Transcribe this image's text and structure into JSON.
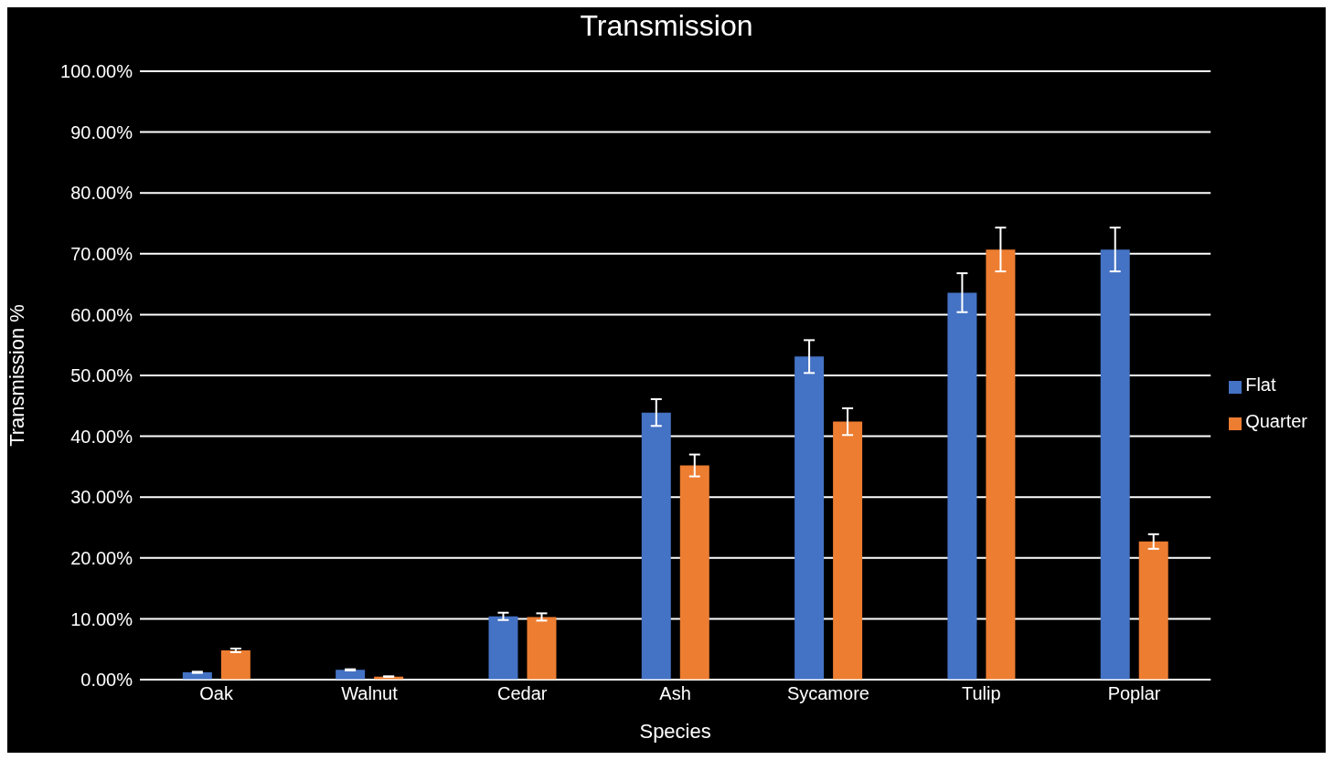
{
  "chart_data": {
    "type": "bar",
    "title": "Transmission",
    "xlabel": "Species",
    "ylabel": "Transmission %",
    "categories": [
      "Oak",
      "Walnut",
      "Cedar",
      "Ash",
      "Sycamore",
      "Tulip",
      "Poplar"
    ],
    "series": [
      {
        "name": "Flat",
        "color": "#4472c4",
        "values": [
          1.2,
          1.6,
          10.4,
          43.9,
          53.1,
          63.6,
          70.7
        ],
        "errors": [
          0.1,
          0.1,
          0.6,
          2.2,
          2.7,
          3.2,
          3.6
        ]
      },
      {
        "name": "Quarter",
        "color": "#ed7d31",
        "values": [
          4.8,
          0.5,
          10.3,
          35.2,
          42.4,
          70.7,
          22.7
        ],
        "errors": [
          0.3,
          0.05,
          0.6,
          1.8,
          2.2,
          3.6,
          1.2
        ]
      }
    ],
    "ylim": [
      0,
      100
    ],
    "yticks": [
      {
        "value": 0,
        "label": "0.00%"
      },
      {
        "value": 10,
        "label": "10.00%"
      },
      {
        "value": 20,
        "label": "20.00%"
      },
      {
        "value": 30,
        "label": "30.00%"
      },
      {
        "value": 40,
        "label": "40.00%"
      },
      {
        "value": 50,
        "label": "50.00%"
      },
      {
        "value": 60,
        "label": "60.00%"
      },
      {
        "value": 70,
        "label": "70.00%"
      },
      {
        "value": 80,
        "label": "80.00%"
      },
      {
        "value": 90,
        "label": "90.00%"
      },
      {
        "value": 100,
        "label": "100.00%"
      }
    ],
    "grid": "y",
    "legend": "right"
  }
}
